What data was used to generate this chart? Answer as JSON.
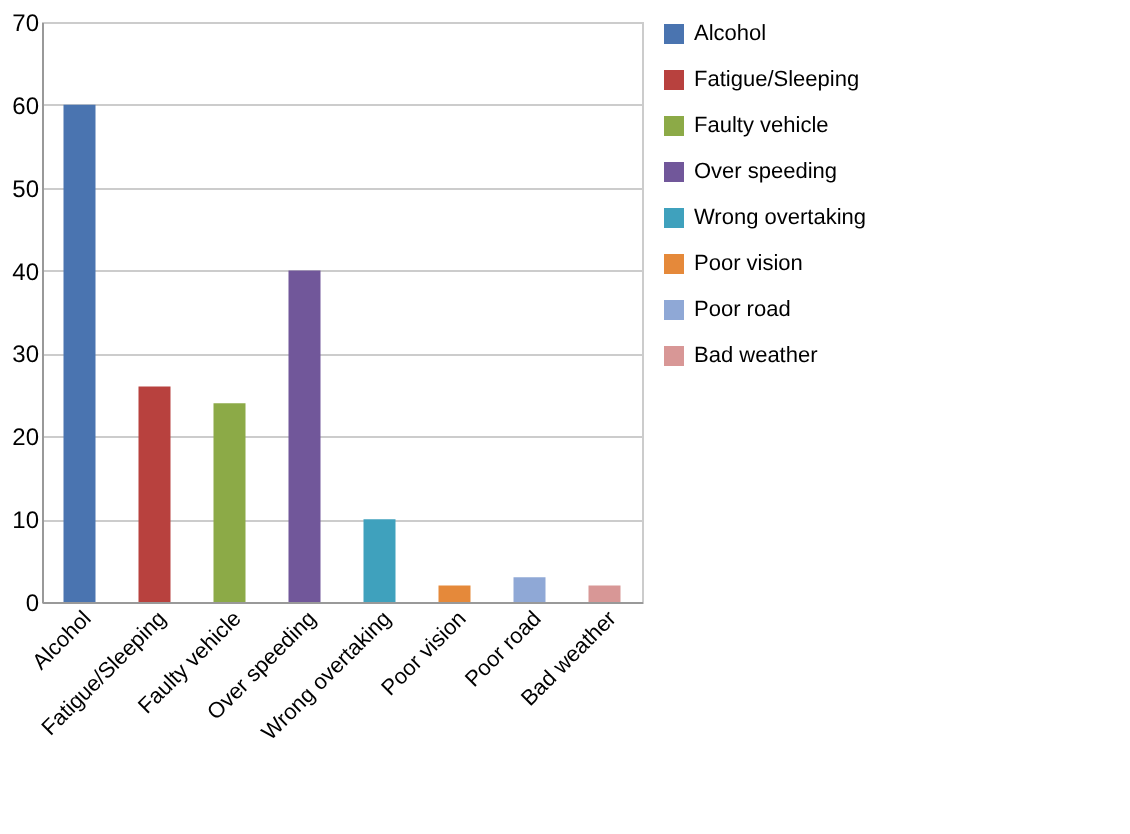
{
  "chart_data": {
    "type": "bar",
    "categories": [
      "Alcohol",
      "Fatigue/Sleeping",
      "Faulty vehicle",
      "Over speeding",
      "Wrong overtaking",
      "Poor vision",
      "Poor road",
      "Bad weather"
    ],
    "series": [
      {
        "name": "Alcohol",
        "color": "#4a74b0",
        "values": [
          60,
          null,
          null,
          null,
          null,
          null,
          null,
          null
        ]
      },
      {
        "name": "Fatigue/Sleeping",
        "color": "#b8413e",
        "values": [
          null,
          26,
          null,
          null,
          null,
          null,
          null,
          null
        ]
      },
      {
        "name": "Faulty vehicle",
        "color": "#8caa47",
        "values": [
          null,
          null,
          24,
          null,
          null,
          null,
          null,
          null
        ]
      },
      {
        "name": "Over speeding",
        "color": "#71579a",
        "values": [
          null,
          null,
          null,
          40,
          null,
          null,
          null,
          null
        ]
      },
      {
        "name": "Wrong overtaking",
        "color": "#3fa1bd",
        "values": [
          null,
          null,
          null,
          null,
          10,
          null,
          null,
          null
        ]
      },
      {
        "name": "Poor vision",
        "color": "#e5893a",
        "values": [
          null,
          null,
          null,
          null,
          null,
          2,
          null,
          null
        ]
      },
      {
        "name": "Poor road",
        "color": "#8fa8d6",
        "values": [
          null,
          null,
          null,
          null,
          null,
          null,
          3,
          null
        ]
      },
      {
        "name": "Bad weather",
        "color": "#d89796",
        "values": [
          null,
          null,
          null,
          null,
          null,
          null,
          null,
          2
        ]
      }
    ],
    "ylim": [
      0,
      70
    ],
    "yticks": [
      0,
      10,
      20,
      30,
      40,
      50,
      60,
      70
    ],
    "grid": "y",
    "legend": "right"
  }
}
